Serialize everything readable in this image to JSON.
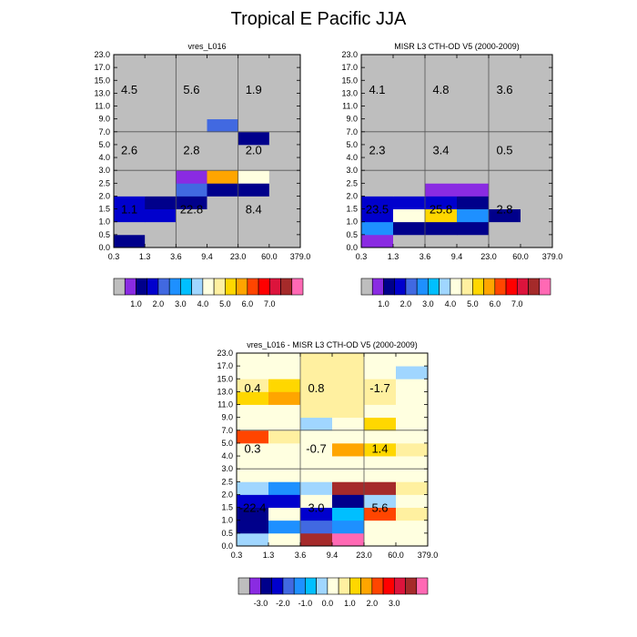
{
  "title": "Tropical E Pacific JJA",
  "chart_data": [
    {
      "type": "heatmap",
      "title": "vres_L016",
      "x_tick_labels": [
        "0.3",
        "1.3",
        "3.6",
        "9.4",
        "23.0",
        "60.0",
        "379.0"
      ],
      "y_tick_labels": [
        "0.0",
        "0.5",
        "1.0",
        "1.5",
        "2.0",
        "2.5",
        "3.0",
        "4.0",
        "5.0",
        "7.0",
        "9.0",
        "11.0",
        "13.0",
        "15.0",
        "17.0",
        "23.0"
      ],
      "colorbar_labels": [
        "1.0",
        "2.0",
        "3.0",
        "4.0",
        "5.0",
        "6.0",
        "7.0"
      ],
      "colorbar_label_slots": [
        2,
        4,
        6,
        8,
        10,
        12,
        14
      ],
      "grid_rows": [
        [
          2,
          0,
          0,
          0,
          0,
          0
        ],
        [
          0,
          0,
          0,
          0,
          0,
          0
        ],
        [
          3,
          3,
          0,
          0,
          0,
          0
        ],
        [
          3,
          2,
          2,
          0,
          0,
          0
        ],
        [
          0,
          0,
          4,
          2,
          2,
          0
        ],
        [
          0,
          0,
          1,
          11,
          8,
          0
        ],
        [
          0,
          0,
          0,
          0,
          0,
          0
        ],
        [
          0,
          0,
          0,
          0,
          0,
          0
        ],
        [
          0,
          0,
          0,
          0,
          2,
          0
        ],
        [
          0,
          0,
          0,
          4,
          0,
          0
        ],
        [
          0,
          0,
          0,
          0,
          0,
          0
        ],
        [
          0,
          0,
          0,
          0,
          0,
          0
        ],
        [
          0,
          0,
          0,
          0,
          0,
          0
        ],
        [
          0,
          0,
          0,
          0,
          0,
          0
        ],
        [
          0,
          0,
          0,
          0,
          0,
          0
        ]
      ],
      "annotations": [
        {
          "text": "4.5",
          "col": 0.5,
          "row": 12.3
        },
        {
          "text": "5.6",
          "col": 2.5,
          "row": 12.3
        },
        {
          "text": "1.9",
          "col": 4.5,
          "row": 12.3
        },
        {
          "text": "2.6",
          "col": 0.5,
          "row": 7.6
        },
        {
          "text": "2.8",
          "col": 2.5,
          "row": 7.6
        },
        {
          "text": "2.0",
          "col": 4.5,
          "row": 7.6
        },
        {
          "text": "1.1",
          "col": 0.5,
          "row": 3.0
        },
        {
          "text": "22.8",
          "col": 2.5,
          "row": 3.0
        },
        {
          "text": "8.4",
          "col": 4.5,
          "row": 3.0
        }
      ]
    },
    {
      "type": "heatmap",
      "title": "MISR L3 CTH-OD V5 (2000-2009)",
      "x_tick_labels": [
        "0.3",
        "1.3",
        "3.6",
        "9.4",
        "23.0",
        "60.0",
        "379.0"
      ],
      "y_tick_labels": [
        "0.0",
        "0.5",
        "1.0",
        "1.5",
        "2.0",
        "2.5",
        "3.0",
        "4.0",
        "5.0",
        "7.0",
        "9.0",
        "11.0",
        "13.0",
        "15.0",
        "17.0",
        "23.0"
      ],
      "colorbar_labels": [
        "1.0",
        "2.0",
        "3.0",
        "4.0",
        "5.0",
        "6.0",
        "7.0"
      ],
      "colorbar_label_slots": [
        2,
        4,
        6,
        8,
        10,
        12,
        14
      ],
      "grid_rows": [
        [
          1,
          0,
          0,
          0,
          0,
          0
        ],
        [
          5,
          2,
          2,
          2,
          0,
          0
        ],
        [
          3,
          8,
          10,
          5,
          2,
          0
        ],
        [
          3,
          3,
          3,
          2,
          0,
          0
        ],
        [
          0,
          0,
          1,
          1,
          0,
          0
        ],
        [
          0,
          0,
          0,
          0,
          0,
          0
        ],
        [
          0,
          0,
          0,
          0,
          0,
          0
        ],
        [
          0,
          0,
          0,
          0,
          0,
          0
        ],
        [
          0,
          0,
          0,
          0,
          0,
          0
        ],
        [
          0,
          0,
          0,
          0,
          0,
          0
        ],
        [
          0,
          0,
          0,
          0,
          0,
          0
        ],
        [
          0,
          0,
          0,
          0,
          0,
          0
        ],
        [
          0,
          0,
          0,
          0,
          0,
          0
        ],
        [
          0,
          0,
          0,
          0,
          0,
          0
        ],
        [
          0,
          0,
          0,
          0,
          0,
          0
        ]
      ],
      "annotations": [
        {
          "text": "4.1",
          "col": 0.5,
          "row": 12.3
        },
        {
          "text": "4.8",
          "col": 2.5,
          "row": 12.3
        },
        {
          "text": "3.6",
          "col": 4.5,
          "row": 12.3
        },
        {
          "text": "2.3",
          "col": 0.5,
          "row": 7.6
        },
        {
          "text": "3.4",
          "col": 2.5,
          "row": 7.6
        },
        {
          "text": "0.5",
          "col": 4.5,
          "row": 7.6
        },
        {
          "text": "23.5",
          "col": 0.5,
          "row": 3.0
        },
        {
          "text": "25.8",
          "col": 2.5,
          "row": 3.0
        },
        {
          "text": "2.8",
          "col": 4.5,
          "row": 3.0
        }
      ]
    },
    {
      "type": "heatmap",
      "title": "vres_L016 - MISR L3 CTH-OD V5 (2000-2009)",
      "x_tick_labels": [
        "0.3",
        "1.3",
        "3.6",
        "9.4",
        "23.0",
        "60.0",
        "379.0"
      ],
      "y_tick_labels": [
        "0.0",
        "0.5",
        "1.0",
        "1.5",
        "2.0",
        "2.5",
        "3.0",
        "4.0",
        "5.0",
        "7.0",
        "9.0",
        "11.0",
        "13.0",
        "15.0",
        "17.0",
        "23.0"
      ],
      "colorbar_labels": [
        "-3.0",
        "-2.0",
        "-1.0",
        "0.0",
        "1.0",
        "2.0",
        "3.0"
      ],
      "colorbar_label_slots": [
        2,
        4,
        6,
        8,
        10,
        12,
        14
      ],
      "grid_rows": [
        [
          7,
          8,
          15,
          16,
          8,
          8
        ],
        [
          2,
          5,
          4,
          5,
          8,
          8
        ],
        [
          2,
          8,
          3,
          6,
          12,
          9
        ],
        [
          3,
          3,
          8,
          2,
          7,
          8
        ],
        [
          7,
          5,
          7,
          15,
          15,
          9
        ],
        [
          8,
          8,
          8,
          8,
          8,
          8
        ],
        [
          8,
          8,
          8,
          8,
          8,
          8
        ],
        [
          8,
          8,
          8,
          11,
          10,
          9
        ],
        [
          12,
          9,
          8,
          8,
          8,
          8
        ],
        [
          8,
          8,
          7,
          8,
          10,
          8
        ],
        [
          8,
          8,
          9,
          9,
          8,
          8
        ],
        [
          10,
          11,
          9,
          9,
          9,
          8
        ],
        [
          9,
          10,
          9,
          9,
          9,
          8
        ],
        [
          8,
          8,
          9,
          9,
          8,
          7
        ],
        [
          8,
          8,
          9,
          9,
          8,
          8
        ]
      ],
      "annotations": [
        {
          "text": "0.4",
          "col": 0.5,
          "row": 12.3
        },
        {
          "text": "0.8",
          "col": 2.5,
          "row": 12.3
        },
        {
          "text": "-1.7",
          "col": 4.5,
          "row": 12.3
        },
        {
          "text": "0.3",
          "col": 0.5,
          "row": 7.6
        },
        {
          "text": "-0.7",
          "col": 2.5,
          "row": 7.6
        },
        {
          "text": "1.4",
          "col": 4.5,
          "row": 7.6
        },
        {
          "text": "-22.4",
          "col": 0.5,
          "row": 3.0
        },
        {
          "text": "3.0",
          "col": 2.5,
          "row": 3.0
        },
        {
          "text": "5.6",
          "col": 4.5,
          "row": 3.0
        }
      ]
    }
  ],
  "palette_colors": [
    "#bebebe",
    "#8a2be2",
    "#00008b",
    "#0000cd",
    "#4169e1",
    "#1e90ff",
    "#00bfff",
    "#a0d6ff",
    "#ffffe0",
    "#fff0a0",
    "#ffd700",
    "#ffa500",
    "#ff4500",
    "#ff0000",
    "#dc143c",
    "#a52a2a",
    "#ff69b4"
  ]
}
